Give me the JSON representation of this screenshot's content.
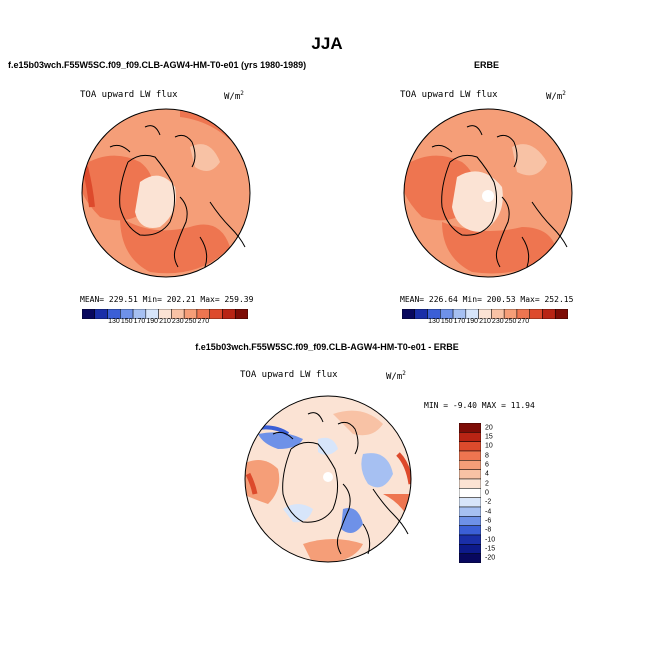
{
  "title": "JJA",
  "panels": [
    {
      "header": "f.e15b03wch.F55W5SC.f09_f09.CLB-AGW4-HM-T0-e01 (yrs 1980-1989)",
      "variable": "TOA upward LW flux",
      "units_base": "W/m",
      "units_exp": "2",
      "stats": "MEAN= 229.51   Min= 202.21   Max= 259.39"
    },
    {
      "header": "ERBE",
      "variable": "TOA upward LW flux",
      "units_base": "W/m",
      "units_exp": "2",
      "stats": "MEAN= 226.64   Min= 200.53   Max= 252.15"
    },
    {
      "header": "f.e15b03wch.F55W5SC.f09_f09.CLB-AGW4-HM-T0-e01 - ERBE",
      "variable": "TOA upward LW flux",
      "units_base": "W/m",
      "units_exp": "2",
      "stats": "MIN = -9.40 MAX = 11.94"
    }
  ],
  "colorbar_abs": {
    "ticks": [
      "130",
      "150",
      "170",
      "190",
      "210",
      "230",
      "250",
      "270"
    ],
    "colors": [
      "#08085e",
      "#1a2fa8",
      "#3b5fd6",
      "#6e91e8",
      "#a6c0f2",
      "#d7e5fa",
      "#fbe3d4",
      "#f8c2a5",
      "#f59e78",
      "#ee7550",
      "#dd4a2c",
      "#b82414",
      "#7e0c06"
    ]
  },
  "colorbar_diff": {
    "labels": [
      "20",
      "15",
      "10",
      "8",
      "6",
      "4",
      "2",
      "0",
      "-2",
      "-4",
      "-6",
      "-8",
      "-10",
      "-15",
      "-20"
    ],
    "colors": [
      "#7e0c06",
      "#b82414",
      "#dd4a2c",
      "#ee7550",
      "#f59e78",
      "#f8c2a5",
      "#fbe3d4",
      "#ffffff",
      "#d7e5fa",
      "#a6c0f2",
      "#6e91e8",
      "#3b5fd6",
      "#1a2fa8",
      "#0d1a8a",
      "#08085e"
    ]
  },
  "map_colors": {
    "ocean_orange": "#f28c62",
    "light_orange": "#f8b58f",
    "pale": "#fbe3d4",
    "deep_orange": "#e86a44",
    "white": "#ffffff",
    "light_blue": "#a6c0f2",
    "mid_blue": "#6e91e8",
    "pink": "#fbcdb3"
  }
}
